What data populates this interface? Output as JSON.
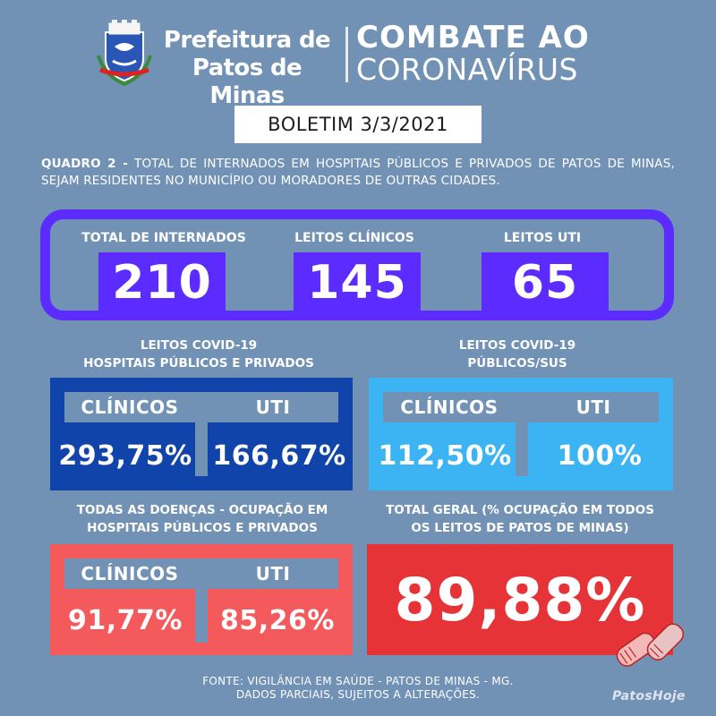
{
  "header": {
    "prefeitura_line1": "Prefeitura de",
    "prefeitura_line2": "Patos de Minas",
    "combate_line1": "COMBATE AO",
    "combate_line2": "CORONAVÍRUS",
    "crest_icon": "city-crest-icon"
  },
  "boletim": "BOLETIM 3/3/2021",
  "description": {
    "prefix": "QUADRO 2 -",
    "text": " TOTAL DE INTERNADOS EM HOSPITAIS PÚBLICOS E PRIVADOS DE PATOS DE MINAS, SEJAM RESIDENTES NO MUNICÍPIO OU MORADORES DE OUTRAS CIDADES."
  },
  "totals": {
    "total_label": "TOTAL DE INTERNADOS",
    "total_value": "210",
    "clinicos_label": "LEITOS CLÍNICOS",
    "clinicos_value": "145",
    "uti_label": "LEITOS UTI",
    "uti_value": "65"
  },
  "covid_all": {
    "title_line1": "LEITOS COVID-19",
    "title_line2": "HOSPITAIS PÚBLICOS E PRIVADOS",
    "clinicos_label": "CLÍNICOS",
    "uti_label": "UTI",
    "clinicos_value": "293,75%",
    "uti_value": "166,67%"
  },
  "covid_sus": {
    "title_line1": "LEITOS COVID-19",
    "title_line2": "PÚBLICOS/SUS",
    "clinicos_label": "CLÍNICOS",
    "uti_label": "UTI",
    "clinicos_value": "112,50%",
    "uti_value": "100%"
  },
  "all_diseases": {
    "title_line1": "TODAS AS DOENÇAS - OCUPAÇÃO EM",
    "title_line2": "HOSPITAIS PÚBLICOS E PRIVADOS",
    "clinicos_label": "CLÍNICOS",
    "uti_label": "UTI",
    "clinicos_value": "91,77%",
    "uti_value": "85,26%"
  },
  "total_geral": {
    "title_line1": "TOTAL GERAL (% OCUPAÇÃO EM TODOS",
    "title_line2": "OS LEITOS DE PATOS DE MINAS)",
    "value": "89,88%"
  },
  "footer": {
    "line1": "FONTE: VIGILÂNCIA EM SAÚDE - PATOS DE MINAS - MG.",
    "line2": "DADOS PARCIAIS, SUJEITOS A ALTERAÇÕES."
  },
  "watermark": "PatosHoje",
  "colors": {
    "background": "#7192b5",
    "purple": "#5b2bff",
    "dark_blue": "#1144aa",
    "light_blue": "#3cb4f3",
    "coral": "#f45a5b",
    "red": "#e63338"
  }
}
